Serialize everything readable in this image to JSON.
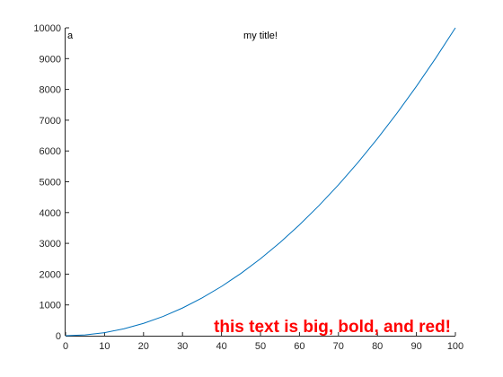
{
  "chart_data": {
    "type": "line",
    "title": "my title!",
    "xlabel": "",
    "ylabel": "",
    "xlim": [
      0,
      100
    ],
    "ylim": [
      0,
      10000
    ],
    "x_ticks": [
      0,
      10,
      20,
      30,
      40,
      50,
      60,
      70,
      80,
      90,
      100
    ],
    "y_ticks": [
      0,
      1000,
      2000,
      3000,
      4000,
      5000,
      6000,
      7000,
      8000,
      9000,
      10000
    ],
    "grid": false,
    "series": [
      {
        "color": "#0072bd",
        "x": [
          0,
          5,
          10,
          15,
          20,
          25,
          30,
          35,
          40,
          45,
          50,
          55,
          60,
          65,
          70,
          75,
          80,
          85,
          90,
          95,
          100
        ],
        "y": [
          0,
          25,
          100,
          225,
          400,
          625,
          900,
          1225,
          1600,
          2025,
          2500,
          3025,
          3600,
          4225,
          4900,
          5625,
          6400,
          7225,
          8100,
          9025,
          10000
        ]
      }
    ],
    "annotations": [
      {
        "text": "a",
        "x": 0,
        "y": 10000,
        "color": "#000000"
      },
      {
        "text": "this text is big, bold, and red!",
        "x": 100,
        "y": 0,
        "color": "#ff0000"
      }
    ]
  }
}
